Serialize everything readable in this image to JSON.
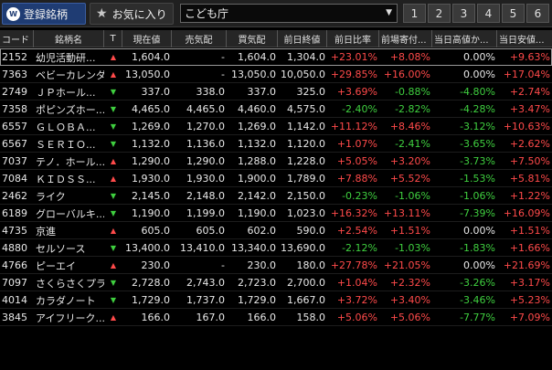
{
  "toolbar": {
    "tab_registered": "登録銘柄",
    "tab_favorites": "お気に入り",
    "list_select": "こども庁",
    "page_buttons": [
      "1",
      "2",
      "3",
      "4",
      "5",
      "6"
    ],
    "icon_registered": "W",
    "icon_fav": "★",
    "caret": "▼"
  },
  "columns": [
    "コード",
    "銘柄名",
    "T",
    "現在値",
    "売気配",
    "買気配",
    "前日終値",
    "前日比率",
    "前場寄付...",
    "当日高値か...",
    "当日安値..."
  ],
  "rows": [
    {
      "code": "2152",
      "name": "幼児活動研...",
      "dir": "up",
      "price": "1,604.0",
      "ask": "-",
      "bid": "1,604.0",
      "prev": "1,304.0",
      "chg": "+23.01%",
      "open": "+8.08%",
      "high": "0.00%",
      "low": "+9.63%"
    },
    {
      "code": "7363",
      "name": "ベビーカレンダー",
      "dir": "up",
      "price": "13,050.0",
      "ask": "-",
      "bid": "13,050.0",
      "prev": "10,050.0",
      "chg": "+29.85%",
      "open": "+16.00%",
      "high": "0.00%",
      "low": "+17.04%"
    },
    {
      "code": "2749",
      "name": "ＪＰホール...",
      "dir": "down",
      "price": "337.0",
      "ask": "338.0",
      "bid": "337.0",
      "prev": "325.0",
      "chg": "+3.69%",
      "open": "-0.88%",
      "high": "-4.80%",
      "low": "+2.74%"
    },
    {
      "code": "7358",
      "name": "ポピンズホー...",
      "dir": "down",
      "price": "4,465.0",
      "ask": "4,465.0",
      "bid": "4,460.0",
      "prev": "4,575.0",
      "chg": "-2.40%",
      "open": "-2.82%",
      "high": "-4.28%",
      "low": "+3.47%"
    },
    {
      "code": "6557",
      "name": "ＧＬＯＢＡ...",
      "dir": "down",
      "price": "1,269.0",
      "ask": "1,270.0",
      "bid": "1,269.0",
      "prev": "1,142.0",
      "chg": "+11.12%",
      "open": "+8.46%",
      "high": "-3.12%",
      "low": "+10.63%"
    },
    {
      "code": "6567",
      "name": "ＳＥＲＩＯ...",
      "dir": "down",
      "price": "1,132.0",
      "ask": "1,136.0",
      "bid": "1,132.0",
      "prev": "1,120.0",
      "chg": "+1.07%",
      "open": "-2.41%",
      "high": "-3.65%",
      "low": "+2.62%"
    },
    {
      "code": "7037",
      "name": "テノ．ホール...",
      "dir": "up",
      "price": "1,290.0",
      "ask": "1,290.0",
      "bid": "1,288.0",
      "prev": "1,228.0",
      "chg": "+5.05%",
      "open": "+3.20%",
      "high": "-3.73%",
      "low": "+7.50%"
    },
    {
      "code": "7084",
      "name": "ＫＩＤＳＳ...",
      "dir": "up",
      "price": "1,930.0",
      "ask": "1,930.0",
      "bid": "1,900.0",
      "prev": "1,789.0",
      "chg": "+7.88%",
      "open": "+5.52%",
      "high": "-1.53%",
      "low": "+5.81%"
    },
    {
      "code": "2462",
      "name": "ライク",
      "dir": "down",
      "price": "2,145.0",
      "ask": "2,148.0",
      "bid": "2,142.0",
      "prev": "2,150.0",
      "chg": "-0.23%",
      "open": "-1.06%",
      "high": "-1.06%",
      "low": "+1.22%"
    },
    {
      "code": "6189",
      "name": "グローバルキ...",
      "dir": "down",
      "price": "1,190.0",
      "ask": "1,199.0",
      "bid": "1,190.0",
      "prev": "1,023.0",
      "chg": "+16.32%",
      "open": "+13.11%",
      "high": "-7.39%",
      "low": "+16.09%"
    },
    {
      "code": "4735",
      "name": "京進",
      "dir": "up",
      "price": "605.0",
      "ask": "605.0",
      "bid": "602.0",
      "prev": "590.0",
      "chg": "+2.54%",
      "open": "+1.51%",
      "high": "0.00%",
      "low": "+1.51%"
    },
    {
      "code": "4880",
      "name": "セルソース",
      "dir": "down",
      "price": "13,400.0",
      "ask": "13,410.0",
      "bid": "13,340.0",
      "prev": "13,690.0",
      "chg": "-2.12%",
      "open": "-1.03%",
      "high": "-1.83%",
      "low": "+1.66%"
    },
    {
      "code": "4766",
      "name": "ピーエイ",
      "dir": "up",
      "price": "230.0",
      "ask": "-",
      "bid": "230.0",
      "prev": "180.0",
      "chg": "+27.78%",
      "open": "+21.05%",
      "high": "0.00%",
      "low": "+21.69%"
    },
    {
      "code": "7097",
      "name": "さくらさくプラス",
      "dir": "down",
      "price": "2,728.0",
      "ask": "2,743.0",
      "bid": "2,723.0",
      "prev": "2,700.0",
      "chg": "+1.04%",
      "open": "+2.32%",
      "high": "-3.26%",
      "low": "+3.17%"
    },
    {
      "code": "4014",
      "name": "カラダノート",
      "dir": "down",
      "price": "1,729.0",
      "ask": "1,737.0",
      "bid": "1,729.0",
      "prev": "1,667.0",
      "chg": "+3.72%",
      "open": "+3.40%",
      "high": "-3.46%",
      "low": "+5.23%"
    },
    {
      "code": "3845",
      "name": "アイフリーク...",
      "dir": "up",
      "price": "166.0",
      "ask": "167.0",
      "bid": "166.0",
      "prev": "158.0",
      "chg": "+5.06%",
      "open": "+5.06%",
      "high": "-7.77%",
      "low": "+7.09%"
    }
  ],
  "colors": {
    "up": "#ff4a4a",
    "down": "#3fcf3f",
    "tab_active": "#1f3c73"
  }
}
